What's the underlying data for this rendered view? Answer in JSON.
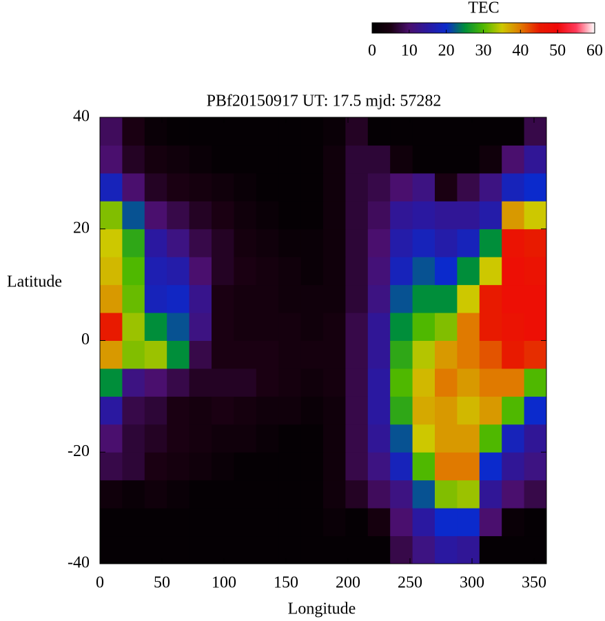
{
  "chart_data": {
    "type": "heatmap",
    "title": "PBf20150917  UT: 17.5  mjd: 57282",
    "x_label": "Longitude",
    "y_label": "Latitude",
    "xlim": [
      0,
      360
    ],
    "ylim": [
      -40,
      40
    ],
    "xticks": [
      0,
      50,
      100,
      150,
      200,
      250,
      300,
      350
    ],
    "yticks": [
      -40,
      -20,
      0,
      20,
      40
    ],
    "xbins": [
      0,
      18,
      36,
      54,
      72,
      90,
      108,
      126,
      144,
      162,
      180,
      198,
      216,
      234,
      252,
      270,
      288,
      306,
      324,
      342,
      360
    ],
    "ybins": [
      -40,
      -35,
      -30,
      -25,
      -20,
      -15,
      -10,
      -5,
      0,
      5,
      10,
      15,
      20,
      25,
      30,
      35,
      40
    ],
    "values": [
      [
        1,
        1,
        1,
        1,
        1,
        1,
        1,
        1,
        1,
        1,
        1,
        1,
        1,
        8,
        12,
        15,
        14,
        1,
        1,
        1
      ],
      [
        1,
        1,
        1,
        1,
        1,
        1,
        1,
        1,
        1,
        1,
        2,
        1,
        4,
        10,
        15,
        20,
        20,
        10,
        2,
        1
      ],
      [
        3,
        2,
        3,
        2,
        1,
        1,
        1,
        1,
        1,
        1,
        3,
        6,
        9,
        12,
        22,
        32,
        33,
        14,
        10,
        8
      ],
      [
        8,
        7,
        5,
        4,
        3,
        2,
        1,
        1,
        1,
        1,
        3,
        8,
        12,
        18,
        30,
        40,
        40,
        20,
        14,
        12
      ],
      [
        10,
        7,
        6,
        5,
        4,
        3,
        3,
        2,
        1,
        1,
        3,
        8,
        14,
        22,
        35,
        38,
        38,
        30,
        18,
        14
      ],
      [
        15,
        8,
        7,
        5,
        4,
        5,
        4,
        3,
        3,
        2,
        3,
        8,
        15,
        28,
        37,
        38,
        36,
        38,
        30,
        20
      ],
      [
        25,
        12,
        10,
        8,
        6,
        6,
        6,
        5,
        4,
        3,
        4,
        8,
        15,
        30,
        36,
        40,
        38,
        40,
        40,
        30
      ],
      [
        38,
        32,
        33,
        25,
        8,
        5,
        5,
        5,
        4,
        4,
        4,
        8,
        14,
        28,
        34,
        38,
        40,
        42,
        45,
        44
      ],
      [
        45,
        33,
        25,
        22,
        12,
        5,
        4,
        4,
        4,
        3,
        4,
        8,
        14,
        25,
        30,
        32,
        40,
        45,
        47,
        48
      ],
      [
        38,
        31,
        18,
        19,
        13,
        5,
        4,
        4,
        3,
        3,
        3,
        7,
        12,
        22,
        25,
        25,
        35,
        45,
        48,
        48
      ],
      [
        36,
        30,
        17,
        16,
        10,
        6,
        5,
        4,
        3,
        2,
        3,
        7,
        11,
        18,
        22,
        20,
        25,
        35,
        48,
        47
      ],
      [
        35,
        28,
        15,
        12,
        8,
        6,
        4,
        3,
        2,
        2,
        3,
        7,
        10,
        16,
        18,
        16,
        18,
        25,
        47,
        45
      ],
      [
        32,
        22,
        10,
        8,
        6,
        5,
        3,
        2,
        1,
        1,
        3,
        7,
        9,
        14,
        15,
        14,
        14,
        16,
        38,
        35
      ],
      [
        18,
        10,
        6,
        5,
        4,
        3,
        2,
        1,
        1,
        1,
        3,
        7,
        8,
        10,
        12,
        5,
        8,
        12,
        18,
        20
      ],
      [
        10,
        6,
        4,
        3,
        2,
        1,
        1,
        1,
        1,
        1,
        3,
        7,
        7,
        3,
        1,
        1,
        1,
        3,
        10,
        14
      ],
      [
        9,
        5,
        2,
        1,
        1,
        1,
        1,
        1,
        1,
        1,
        2,
        6,
        1,
        1,
        1,
        1,
        1,
        1,
        1,
        8
      ]
    ],
    "colorbar": {
      "title": "TEC",
      "clim": [
        0,
        60
      ],
      "ticks": [
        0,
        10,
        20,
        30,
        40,
        50,
        60
      ]
    },
    "colormap": [
      "#000000",
      "#1a0012",
      "#4a0f6e",
      "#2a18a0",
      "#0b2acc",
      "#008e3a",
      "#4fb800",
      "#cdc800",
      "#e07a00",
      "#e81a00",
      "#f00808",
      "#ff3a5a",
      "#ffffff"
    ]
  }
}
